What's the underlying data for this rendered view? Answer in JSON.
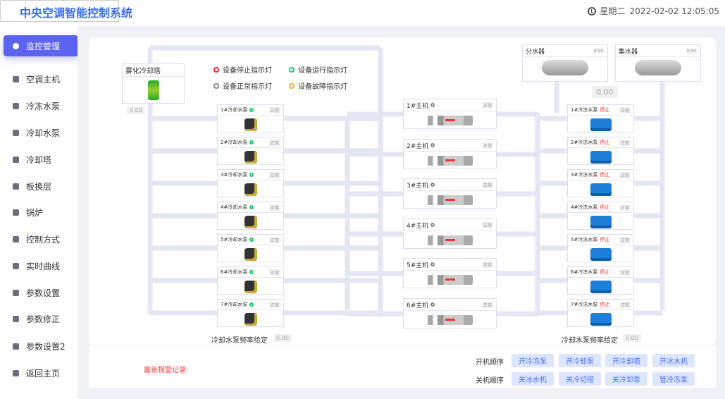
{
  "header": {
    "title": "中央空调智能控制系统",
    "weekday": "星期二",
    "datetime": "2022-02-02 12:05:05"
  },
  "sidebar": {
    "items": [
      {
        "label": "监控管理",
        "active": true,
        "icon": "monitor-icon"
      },
      {
        "label": "空调主机",
        "icon": "ac-host-icon"
      },
      {
        "label": "冷冻水泵",
        "icon": "pump-icon"
      },
      {
        "label": "冷却水泵",
        "icon": "pump-icon"
      },
      {
        "label": "冷却塔",
        "icon": "tower-icon"
      },
      {
        "label": "板换层",
        "icon": "layers-icon"
      },
      {
        "label": "锅炉",
        "icon": "boiler-icon"
      },
      {
        "label": "控制方式",
        "icon": "control-icon"
      },
      {
        "label": "实时曲线",
        "icon": "chart-icon"
      },
      {
        "label": "参数设置",
        "icon": "gear-icon"
      },
      {
        "label": "参数修正",
        "icon": "save-icon"
      },
      {
        "label": "参数设置2",
        "icon": "gear-icon"
      },
      {
        "label": "返回主页",
        "icon": "home-icon"
      }
    ]
  },
  "legend": [
    {
      "label": "设备停止指示灯",
      "color": "#f5222d"
    },
    {
      "label": "设备运行指示灯",
      "color": "#19c96b"
    },
    {
      "label": "设备正常指示灯",
      "color": "#888888"
    },
    {
      "label": "设备故障指示灯",
      "color": "#f5b800"
    }
  ],
  "tower": {
    "label": "雾化冷却塔",
    "value": "0.00"
  },
  "distributor": {
    "label": "分水器",
    "value": "0.00"
  },
  "collector": {
    "label": "集水器",
    "value": "0.00"
  },
  "header_value": "0.00",
  "cooling_pumps": [
    {
      "name": "1#冷却水泵",
      "status": "正常"
    },
    {
      "name": "2#冷却水泵",
      "status": "正常"
    },
    {
      "name": "3#冷却水泵",
      "status": "正常"
    },
    {
      "name": "4#冷却水泵",
      "status": "正常"
    },
    {
      "name": "5#冷却水泵",
      "status": "正常"
    },
    {
      "name": "6#冷却水泵",
      "status": "正常"
    },
    {
      "name": "7#冷却水泵",
      "status": "正常"
    }
  ],
  "chillers": [
    {
      "name": "1#主机",
      "status": "正常"
    },
    {
      "name": "2#主机",
      "status": "正常"
    },
    {
      "name": "3#主机",
      "status": "正常"
    },
    {
      "name": "4#主机",
      "status": "正常"
    },
    {
      "name": "5#主机",
      "status": "正常"
    },
    {
      "name": "6#主机",
      "status": "正常"
    }
  ],
  "chilled_pumps": [
    {
      "name": "1#冷冻水泵",
      "state": "停止",
      "status": "正常"
    },
    {
      "name": "2#冷冻水泵",
      "state": "停止",
      "status": "正常"
    },
    {
      "name": "3#冷冻水泵",
      "state": "停止",
      "status": "正常"
    },
    {
      "name": "4#冷冻水泵",
      "state": "停止",
      "status": "正常"
    },
    {
      "name": "5#冷冻水泵",
      "state": "停止",
      "status": "正常"
    },
    {
      "name": "6#冷冻水泵",
      "state": "停止",
      "status": "正常"
    },
    {
      "name": "7#冷冻水泵",
      "state": "停止",
      "status": "正常"
    }
  ],
  "cooling_freq": {
    "label": "冷却水泵频率给定",
    "value": "0.00"
  },
  "chilled_freq": {
    "label": "冷却水泵频率给定",
    "value": "0.00"
  },
  "alarm": {
    "label": "最新报警记录:",
    "value": ""
  },
  "start_sequence": {
    "label": "开机顺序",
    "buttons": [
      "开冷冻泵",
      "开冷却泵",
      "开冷却塔",
      "开冰水机"
    ]
  },
  "stop_sequence": {
    "label": "关机顺序",
    "buttons": [
      "关冰水机",
      "关冷切塔",
      "关冷却泵",
      "管冷冻泵"
    ]
  }
}
